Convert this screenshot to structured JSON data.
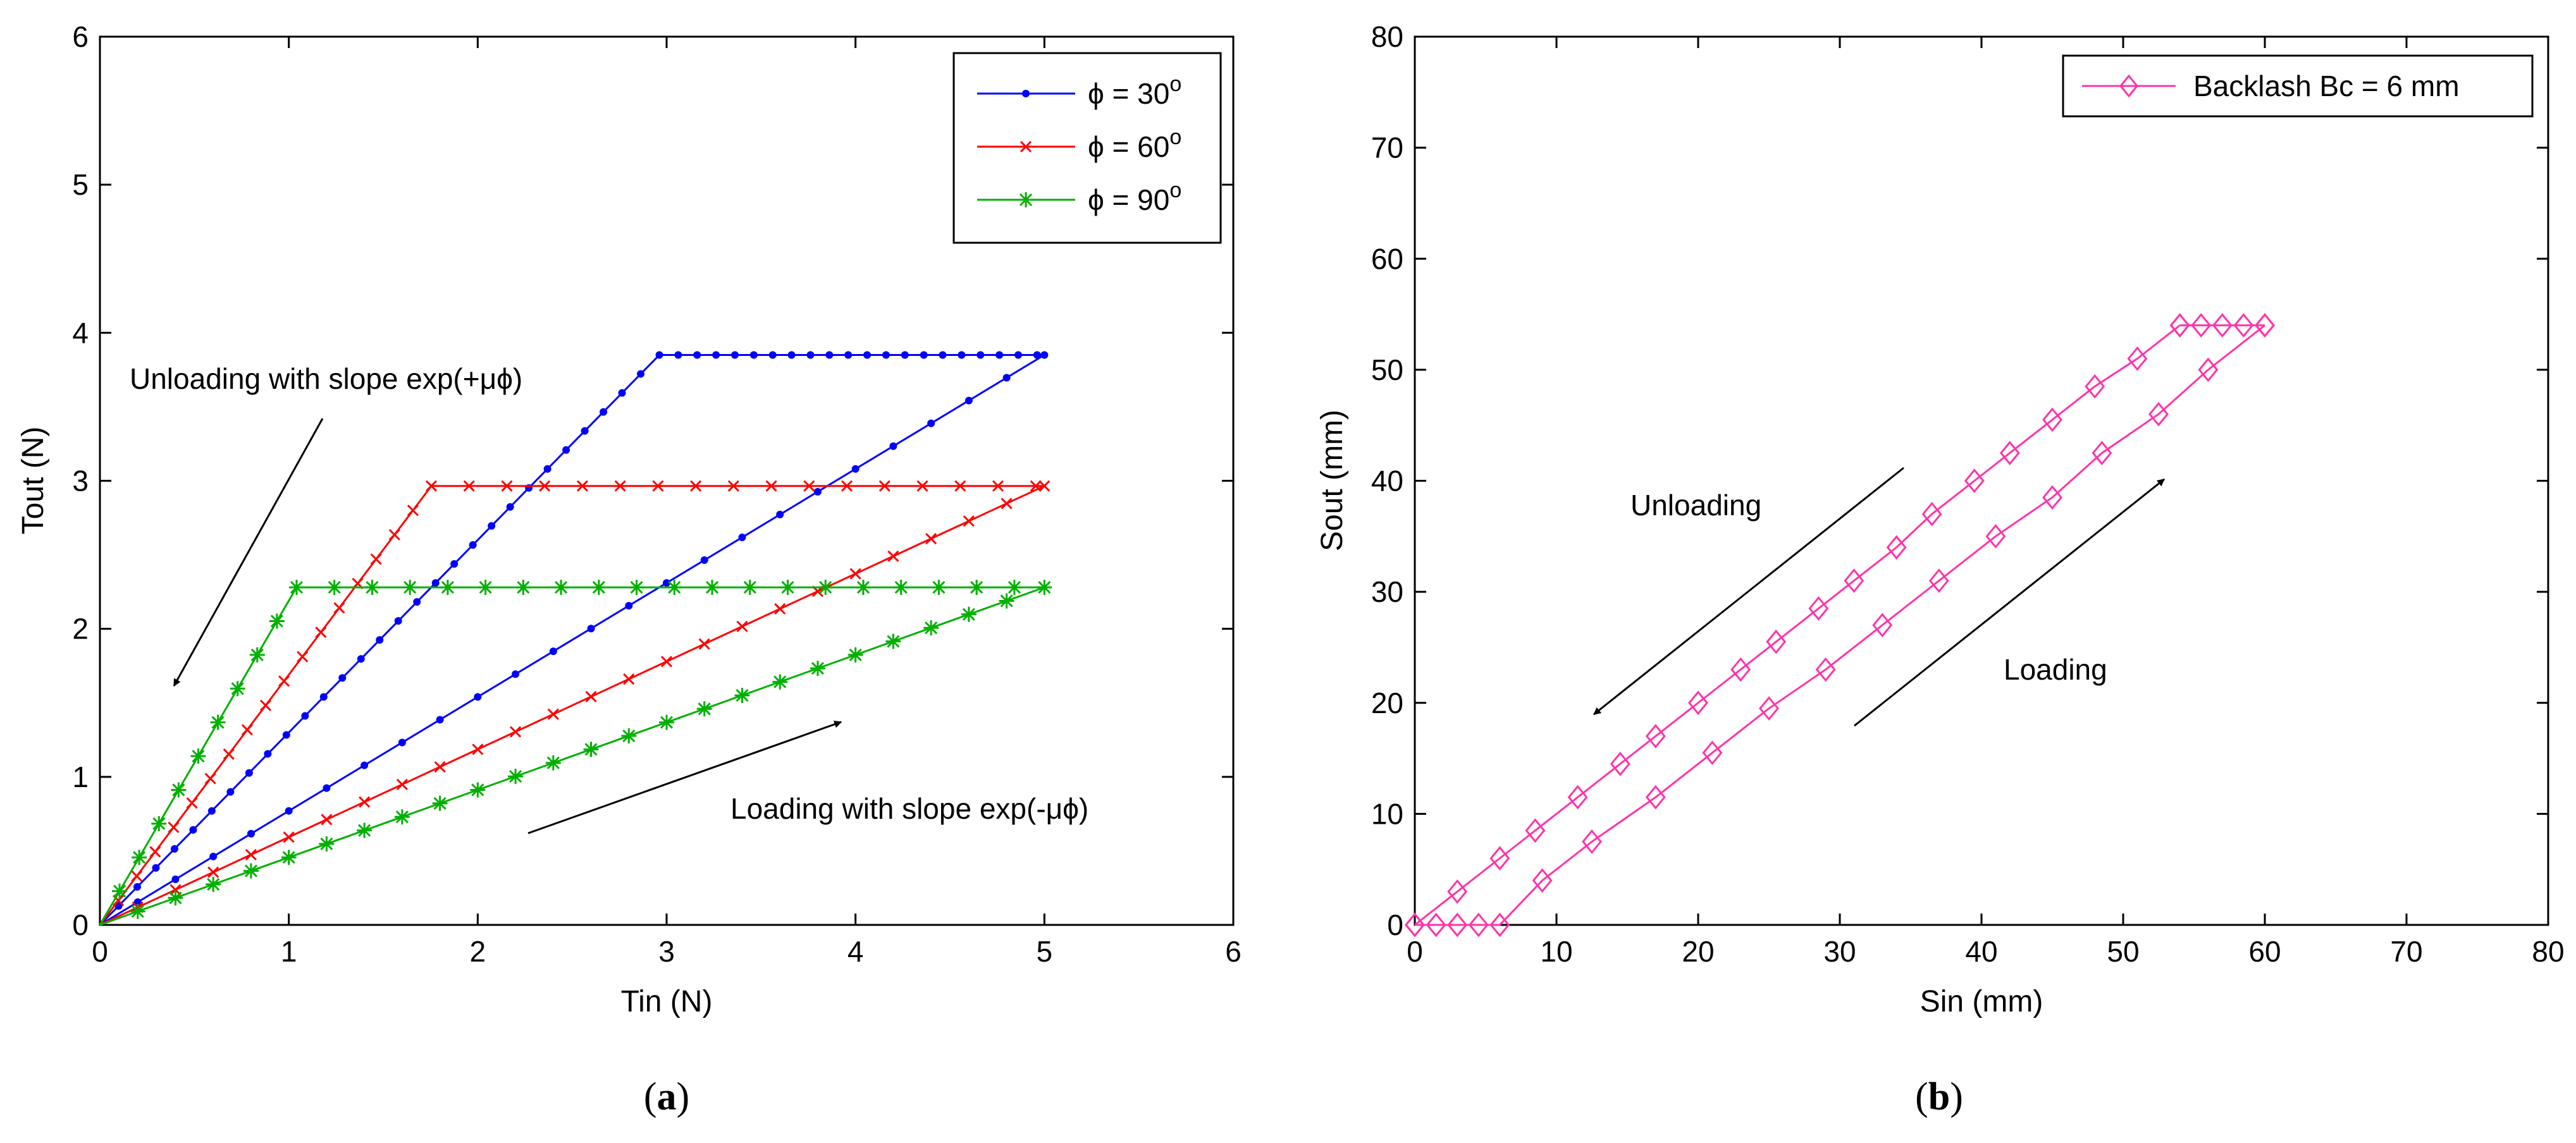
{
  "chart_data": [
    {
      "id": "a",
      "type": "line",
      "caption_open": "(",
      "caption_letter": "a",
      "caption_close": ")",
      "xlabel": "Tin (N)",
      "ylabel": "Tout (N)",
      "xlim": [
        0,
        6
      ],
      "ylim": [
        0,
        6
      ],
      "xticks": [
        0,
        1,
        2,
        3,
        4,
        5,
        6
      ],
      "yticks": [
        0,
        1,
        2,
        3,
        4,
        5,
        6
      ],
      "grid": false,
      "legend_position": "top-right",
      "series": [
        {
          "name": "ϕ = 30",
          "name_prefix": "ϕ = 30",
          "superscript": "o",
          "color": "#0000ff",
          "marker": "point",
          "loading_slope": 0.77,
          "unloading_slope": 1.3,
          "max_in": 5,
          "plateau": 3.85
        },
        {
          "name": "ϕ = 60",
          "name_prefix": "ϕ = 60",
          "superscript": "o",
          "color": "#ff0000",
          "marker": "x",
          "loading_slope": 0.593,
          "unloading_slope": 1.69,
          "max_in": 5,
          "plateau": 2.965
        },
        {
          "name": "ϕ = 90",
          "name_prefix": "ϕ = 90",
          "superscript": "o",
          "color": "#00b000",
          "marker": "star",
          "loading_slope": 0.456,
          "unloading_slope": 2.19,
          "max_in": 5,
          "plateau": 2.28
        }
      ],
      "annotations": [
        {
          "text": "Unloading with slope exp(+μϕ)"
        },
        {
          "text": "Loading with slope exp(-μϕ)"
        }
      ]
    },
    {
      "id": "b",
      "type": "line",
      "caption_open": "(",
      "caption_letter": "b",
      "caption_close": ")",
      "xlabel": "Sin (mm)",
      "ylabel": "Sout (mm)",
      "xlim": [
        0,
        80
      ],
      "ylim": [
        0,
        80
      ],
      "xticks": [
        0,
        10,
        20,
        30,
        40,
        50,
        60,
        70,
        80
      ],
      "yticks": [
        0,
        10,
        20,
        30,
        40,
        50,
        60,
        70,
        80
      ],
      "grid": false,
      "legend_position": "top-right",
      "series": [
        {
          "name": "Backlash Bc = 6 mm",
          "color": "#ff33aa",
          "marker": "diamond",
          "loading": {
            "x": [
              0,
              1.5,
              3,
              4.5,
              6,
              9,
              12.5,
              17,
              21,
              25,
              29,
              33,
              37,
              41,
              45,
              48.5,
              52.5,
              56,
              60
            ],
            "y": [
              0,
              0,
              0,
              0,
              0,
              4,
              7.5,
              11.5,
              15.5,
              19.5,
              23,
              27,
              31,
              35,
              38.5,
              42.5,
              46,
              50,
              54
            ]
          },
          "plateau": {
            "x": [
              54,
              55.5,
              57,
              58.5,
              60
            ],
            "y": [
              54,
              54,
              54,
              54,
              54
            ]
          },
          "unloading": {
            "x": [
              54,
              51,
              48,
              45,
              42,
              39.5,
              36.5,
              34,
              31,
              28.5,
              25.5,
              23,
              20,
              17,
              14.5,
              11.5,
              8.5,
              6,
              3,
              0
            ],
            "y": [
              54,
              51,
              48.5,
              45.5,
              42.5,
              40,
              37,
              34,
              31,
              28.5,
              25.5,
              23,
              20,
              17,
              14.5,
              11.5,
              8.5,
              6,
              3,
              0
            ]
          }
        }
      ],
      "annotations": [
        {
          "text": "Unloading"
        },
        {
          "text": "Loading"
        }
      ]
    }
  ]
}
